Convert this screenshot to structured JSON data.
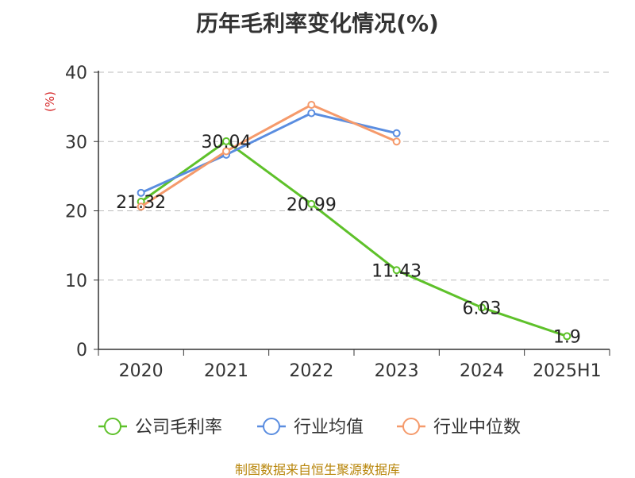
{
  "chart_data": {
    "type": "line",
    "title": "历年毛利率变化情况(%)",
    "ylabel": "(%)",
    "categories": [
      "2020",
      "2021",
      "2022",
      "2023",
      "2024",
      "2025H1"
    ],
    "ylim": [
      0,
      40
    ],
    "yticks": [
      0,
      10,
      20,
      30,
      40
    ],
    "grid": true,
    "legend_position": "bottom",
    "series": [
      {
        "name": "公司毛利率",
        "color": "#5ec12a",
        "values": [
          21.32,
          30.04,
          20.99,
          11.43,
          6.03,
          1.9
        ],
        "labels": [
          "21.32",
          "30.04",
          "20.99",
          "11.43",
          "6.03",
          "1.9"
        ]
      },
      {
        "name": "行业均值",
        "color": "#5a8de0",
        "values": [
          22.6,
          28.1,
          34.1,
          31.2,
          null,
          null
        ]
      },
      {
        "name": "行业中位数",
        "color": "#f59a6b",
        "values": [
          20.6,
          28.6,
          35.3,
          30.0,
          null,
          null
        ]
      }
    ]
  },
  "footer": {
    "source": "制图数据来自恒生聚源数据库"
  }
}
